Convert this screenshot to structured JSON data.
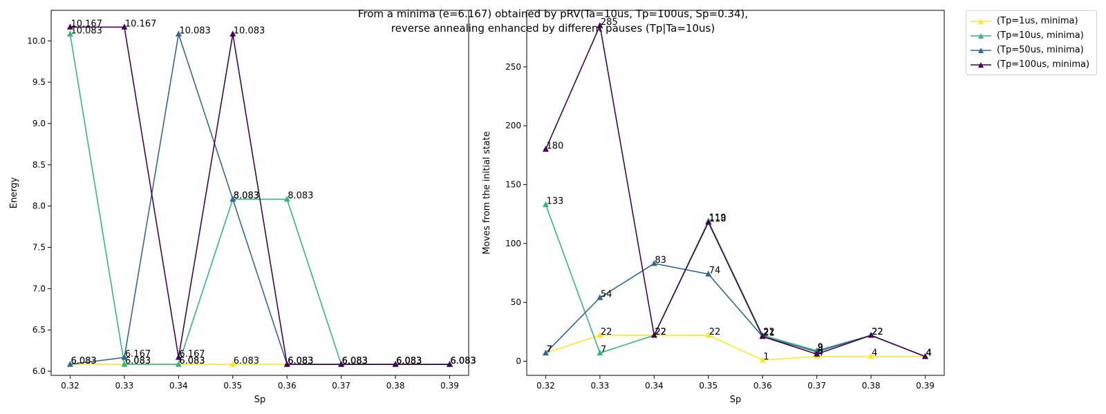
{
  "title_line1": "From a minima (e=6.167) obtained by pRV(Ta=10us, Tp=100us, Sp=0.34),",
  "title_line2": "reverse annealing enhanced by different pauses (Tp|Ta=10us)",
  "colors": {
    "Tp=1us": "#fde725",
    "Tp=10us": "#35b779",
    "Tp=50us": "#31688e",
    "Tp=100us": "#440154"
  },
  "legend": [
    {
      "label": "(Tp=1us, minima)",
      "color": "#fde725"
    },
    {
      "label": "(Tp=10us, minima)",
      "color": "#35b779"
    },
    {
      "label": "(Tp=50us, minima)",
      "color": "#31688e"
    },
    {
      "label": "(Tp=100us, minima)",
      "color": "#440154"
    }
  ],
  "chart_data": [
    {
      "type": "line",
      "xlabel": "Sp",
      "ylabel": "Energy",
      "x": [
        0.32,
        0.33,
        0.34,
        0.35,
        0.36,
        0.37,
        0.38,
        0.39
      ],
      "x_tick_labels": [
        "0.32",
        "0.33",
        "0.34",
        "0.35",
        "0.36",
        "0.37",
        "0.38",
        "0.39"
      ],
      "ylim": [
        5.95,
        10.37
      ],
      "y_ticks": [
        6.0,
        6.5,
        7.0,
        7.5,
        8.0,
        8.5,
        9.0,
        9.5,
        10.0
      ],
      "y_tick_labels": [
        "6.0",
        "6.5",
        "7.0",
        "7.5",
        "8.0",
        "8.5",
        "9.0",
        "9.5",
        "10.0"
      ],
      "grid": false,
      "series": [
        {
          "name": "(Tp=1us, minima)",
          "values": [
            6.083,
            6.083,
            6.083,
            6.083,
            6.083,
            6.083,
            6.083,
            6.083
          ],
          "labels": [
            "6.083",
            "6.083",
            "6.083",
            "6.083",
            "6.083",
            "6.083",
            "6.083",
            "6.083"
          ]
        },
        {
          "name": "(Tp=10us, minima)",
          "values": [
            10.083,
            6.083,
            6.083,
            8.083,
            8.083,
            6.083,
            6.083,
            6.083
          ],
          "labels": [
            "10.083",
            "6.083",
            "6.083",
            "8.083",
            "8.083",
            "6.083",
            "6.083",
            "6.083"
          ]
        },
        {
          "name": "(Tp=50us, minima)",
          "values": [
            6.083,
            6.167,
            10.083,
            8.083,
            6.083,
            6.083,
            6.083,
            6.083
          ],
          "labels": [
            "6.083",
            "6.167",
            "10.083",
            "8.083",
            "6.083",
            "6.083",
            "6.083",
            "6.083"
          ]
        },
        {
          "name": "(Tp=100us, minima)",
          "values": [
            10.167,
            10.167,
            6.167,
            10.083,
            6.083,
            6.083,
            6.083,
            6.083
          ],
          "labels": [
            "10.167",
            "10.167",
            "6.167",
            "10.083",
            "6.083",
            "6.083",
            "6.083",
            "6.083"
          ]
        }
      ]
    },
    {
      "type": "line",
      "xlabel": "Sp",
      "ylabel": "Moves from the initial state",
      "x": [
        0.32,
        0.33,
        0.34,
        0.35,
        0.36,
        0.37,
        0.38,
        0.39
      ],
      "x_tick_labels": [
        "0.32",
        "0.33",
        "0.34",
        "0.35",
        "0.36",
        "0.37",
        "0.38",
        "0.39"
      ],
      "ylim": [
        -12,
        298
      ],
      "y_ticks": [
        0,
        50,
        100,
        150,
        200,
        250
      ],
      "y_tick_labels": [
        "0",
        "50",
        "100",
        "150",
        "200",
        "250"
      ],
      "grid": false,
      "series": [
        {
          "name": "(Tp=1us, minima)",
          "values": [
            7,
            22,
            22,
            22,
            1,
            4,
            4,
            4
          ],
          "labels": [
            "7",
            "22",
            "22",
            "22",
            "1",
            "4",
            "4",
            "4"
          ]
        },
        {
          "name": "(Tp=10us, minima)",
          "values": [
            133,
            7,
            22,
            119,
            22,
            9,
            22,
            4
          ],
          "labels": [
            "133",
            "7",
            "22",
            "119",
            "22",
            "9",
            "22",
            "4"
          ]
        },
        {
          "name": "(Tp=50us, minima)",
          "values": [
            7,
            54,
            83,
            74,
            21,
            8,
            22,
            4
          ],
          "labels": [
            "7",
            "54",
            "83",
            "74",
            "21",
            "8",
            "22",
            "4"
          ]
        },
        {
          "name": "(Tp=100us, minima)",
          "values": [
            180,
            285,
            22,
            118,
            21,
            6,
            22,
            4
          ],
          "labels": [
            "180",
            "285",
            "22",
            "118",
            "21",
            "6",
            "22",
            "4"
          ]
        }
      ]
    }
  ]
}
